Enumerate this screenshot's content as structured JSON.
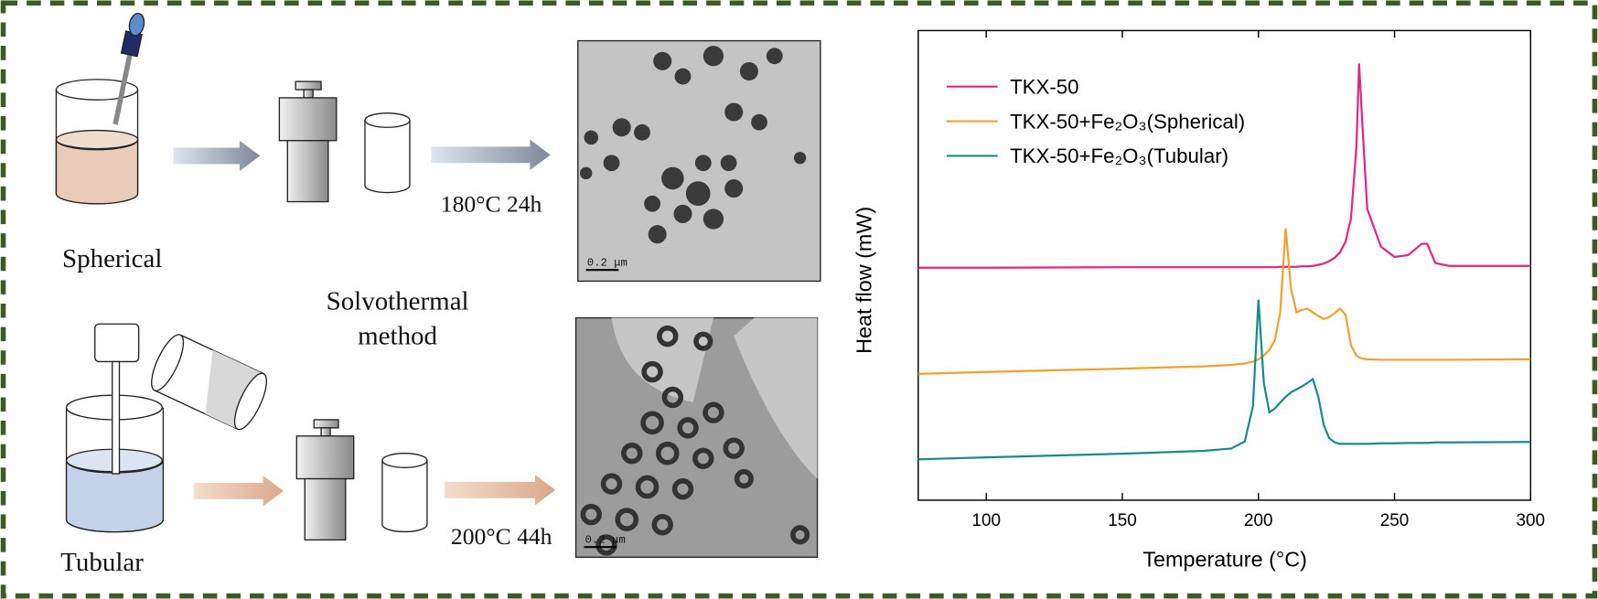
{
  "diagram": {
    "spherical": "Spherical",
    "tubular": "Tubular",
    "method": [
      "Solvothermal",
      "method"
    ],
    "condition_spherical": "180°C 24h",
    "condition_tubular": "200°C 44h",
    "scale_bars": [
      "0.2 μm",
      "0.2 μm"
    ]
  },
  "chart_data": {
    "type": "line",
    "xlabel": "Temperature (°C)",
    "ylabel": "Heat flow (mW)",
    "x": [
      75,
      100,
      150,
      180,
      190,
      195,
      198,
      200,
      202,
      204,
      206,
      208,
      210,
      212,
      214,
      216,
      218,
      220,
      222,
      224,
      226,
      228,
      230,
      232,
      234,
      236,
      237,
      238,
      240,
      245,
      250,
      255,
      260,
      262,
      265,
      270,
      300
    ],
    "series": [
      {
        "name": "TKX-50",
        "color": "#e0287f",
        "values": [
          49.5,
          49.5,
          49.6,
          49.6,
          49.6,
          49.6,
          49.6,
          49.6,
          49.6,
          49.6,
          49.6,
          49.7,
          49.7,
          49.7,
          49.7,
          49.8,
          49.8,
          49.9,
          50.1,
          50.4,
          50.9,
          51.6,
          52.8,
          55,
          60,
          75,
          93,
          82,
          62,
          54,
          51.8,
          52.2,
          54.6,
          54.6,
          50.5,
          49.9,
          49.9
        ]
      },
      {
        "name": "TKX-50+Fe₂O₃(Spherical)",
        "color": "#f0a030",
        "values": [
          26.9,
          27.3,
          28.0,
          28.5,
          28.8,
          29.1,
          29.5,
          30.0,
          30.8,
          32.0,
          34,
          40,
          57.9,
          45,
          40,
          40.5,
          40.8,
          40,
          39.2,
          38.6,
          39,
          39.8,
          40.8,
          39.5,
          33,
          30.8,
          30.4,
          30.2,
          30.0,
          29.9,
          29.9,
          29.9,
          29.9,
          29.9,
          29.9,
          29.9,
          30.0
        ]
      },
      {
        "name": "TKX-50+Fe₂O₃(Tubular)",
        "color": "#1a8a84",
        "values": [
          8.7,
          9.1,
          9.9,
          10.5,
          11,
          12.5,
          20,
          42.7,
          25,
          18.7,
          19.5,
          20.8,
          22,
          23,
          23.6,
          24.2,
          25,
          25.8,
          22,
          16,
          13.2,
          12.3,
          12,
          12,
          12,
          12,
          12,
          12,
          12,
          12.1,
          12.1,
          12.2,
          12.2,
          12.2,
          12.3,
          12.3,
          12.4
        ]
      }
    ],
    "xlim": [
      75,
      300
    ],
    "xticks": [
      100,
      150,
      200,
      250,
      300
    ],
    "ylim": [
      0,
      100
    ],
    "legend": "upper left"
  }
}
